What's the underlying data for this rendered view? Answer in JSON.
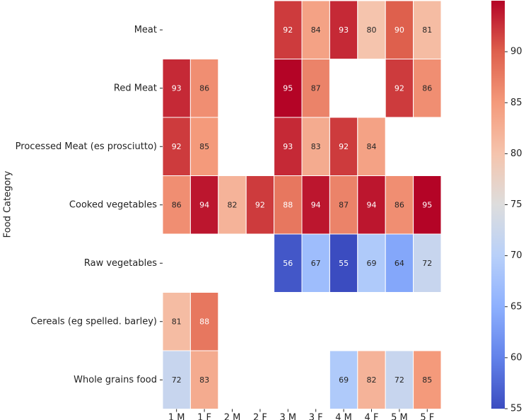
{
  "chart_data": {
    "type": "heatmap",
    "title": "",
    "xlabel": "",
    "ylabel": "Food Category",
    "x_categories": [
      "1 M",
      "1 F",
      "2 M",
      "2 F",
      "3 M",
      "3 F",
      "4 M",
      "4 F",
      "5 M",
      "5 F"
    ],
    "y_categories": [
      "Meat",
      "Red Meat",
      "Processed Meat (es prosciutto)",
      "Cooked vegetables",
      "Raw vegetables",
      "Cereals (eg spelled. barley)",
      "Whole grains food"
    ],
    "values": [
      [
        null,
        null,
        null,
        null,
        92,
        84,
        93,
        80,
        90,
        81
      ],
      [
        93,
        86,
        null,
        null,
        95,
        87,
        null,
        null,
        92,
        86
      ],
      [
        92,
        85,
        null,
        null,
        93,
        83,
        92,
        84,
        null,
        null
      ],
      [
        86,
        94,
        82,
        92,
        88,
        94,
        87,
        94,
        86,
        95
      ],
      [
        null,
        null,
        null,
        null,
        56,
        67,
        55,
        69,
        64,
        72
      ],
      [
        81,
        88,
        null,
        null,
        null,
        null,
        null,
        null,
        null,
        null
      ],
      [
        72,
        83,
        null,
        null,
        null,
        null,
        69,
        82,
        72,
        85
      ]
    ],
    "colormap": "coolwarm",
    "vmin": 55,
    "vmax": 95,
    "colorbar_ticks": [
      55,
      60,
      65,
      70,
      75,
      80,
      85,
      90
    ],
    "annotated": true
  }
}
